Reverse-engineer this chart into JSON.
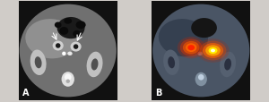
{
  "figsize": [
    3.0,
    1.15
  ],
  "dpi": 100,
  "bg_color": "#d0ccc8",
  "panel_A": {
    "label": "A",
    "label_color": "white",
    "label_fontsize": 7
  },
  "panel_B": {
    "label": "B",
    "label_color": "white",
    "label_fontsize": 7
  }
}
